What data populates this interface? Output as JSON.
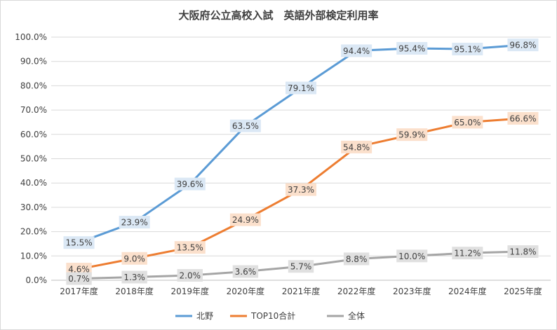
{
  "chart_data": {
    "type": "line",
    "title": "大阪府公立高校入試　英語外部検定利用率",
    "xlabel": "",
    "ylabel": "",
    "categories": [
      "2017年度",
      "2018年度",
      "2019年度",
      "2020年度",
      "2021年度",
      "2022年度",
      "2023年度",
      "2024年度",
      "2025年度"
    ],
    "ylim": [
      0,
      100
    ],
    "yticks": [
      "0.0%",
      "10.0%",
      "20.0%",
      "30.0%",
      "40.0%",
      "50.0%",
      "60.0%",
      "70.0%",
      "80.0%",
      "90.0%",
      "100.0%"
    ],
    "grid": true,
    "legend_position": "bottom",
    "series": [
      {
        "name": "北野",
        "color": "#5b9bd5",
        "label_bg": "#dbe8f5",
        "values": [
          15.5,
          23.9,
          39.6,
          63.5,
          79.1,
          94.4,
          95.4,
          95.1,
          96.8
        ],
        "labels": [
          "15.5%",
          "23.9%",
          "39.6%",
          "63.5%",
          "79.1%",
          "94.4%",
          "95.4%",
          "95.1%",
          "96.8%"
        ]
      },
      {
        "name": "TOP10合計",
        "color": "#ed7d31",
        "label_bg": "#fbe0cc",
        "values": [
          4.6,
          9.0,
          13.5,
          24.9,
          37.3,
          54.8,
          59.9,
          65.0,
          66.6
        ],
        "labels": [
          "4.6%",
          "9.0%",
          "13.5%",
          "24.9%",
          "37.3%",
          "54.8%",
          "59.9%",
          "65.0%",
          "66.6%"
        ]
      },
      {
        "name": "全体",
        "color": "#a5a5a5",
        "label_bg": "#e0e0e0",
        "values": [
          0.7,
          1.3,
          2.0,
          3.6,
          5.7,
          8.8,
          10.0,
          11.2,
          11.8
        ],
        "labels": [
          "0.7%",
          "1.3%",
          "2.0%",
          "3.6%",
          "5.7%",
          "8.8%",
          "10.0%",
          "11.2%",
          "11.8%"
        ]
      }
    ]
  }
}
